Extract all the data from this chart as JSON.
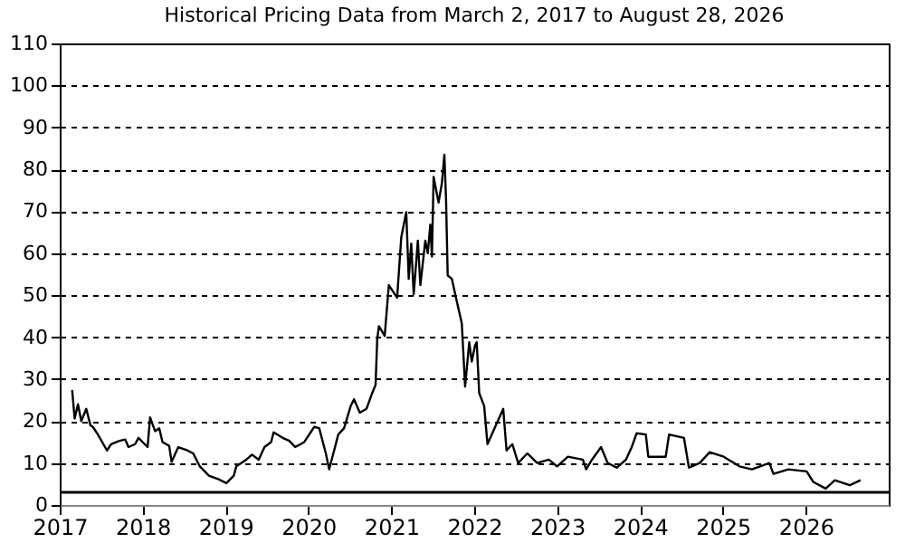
{
  "chart_data": {
    "type": "line",
    "title": "Historical Pricing Data from March 2, 2017 to August 28, 2026",
    "x": [
      2017.15,
      2017.18,
      2017.22,
      2017.26,
      2017.32,
      2017.37,
      2017.4,
      2017.46,
      2017.57,
      2017.62,
      2017.72,
      2017.79,
      2017.83,
      2017.91,
      2017.95,
      2018.06,
      2018.09,
      2018.15,
      2018.2,
      2018.24,
      2018.32,
      2018.35,
      2018.43,
      2018.54,
      2018.61,
      2018.69,
      2018.8,
      2018.91,
      2019.01,
      2019.1,
      2019.13,
      2019.25,
      2019.32,
      2019.4,
      2019.47,
      2019.55,
      2019.58,
      2019.69,
      2019.77,
      2019.84,
      2019.95,
      2020.07,
      2020.13,
      2020.21,
      2020.25,
      2020.29,
      2020.36,
      2020.43,
      2020.51,
      2020.55,
      2020.62,
      2020.7,
      2020.77,
      2020.81,
      2020.83,
      2020.85,
      2020.92,
      2020.97,
      2021.07,
      2021.12,
      2021.18,
      2021.21,
      2021.24,
      2021.27,
      2021.32,
      2021.35,
      2021.41,
      2021.44,
      2021.47,
      2021.49,
      2021.51,
      2021.57,
      2021.61,
      2021.64,
      2021.66,
      2021.68,
      2021.73,
      2021.78,
      2021.85,
      2021.89,
      2021.94,
      2021.97,
      2022.01,
      2022.03,
      2022.06,
      2022.12,
      2022.16,
      2022.35,
      2022.39,
      2022.46,
      2022.53,
      2022.64,
      2022.76,
      2022.9,
      2023.0,
      2023.13,
      2023.31,
      2023.35,
      2023.42,
      2023.53,
      2023.61,
      2023.72,
      2023.83,
      2023.9,
      2023.96,
      2024.07,
      2024.1,
      2024.31,
      2024.35,
      2024.53,
      2024.59,
      2024.72,
      2024.84,
      2025.01,
      2025.2,
      2025.35,
      2025.56,
      2025.61,
      2025.79,
      2026.01,
      2026.09,
      2026.24,
      2026.35,
      2026.53,
      2026.66
    ],
    "values": [
      27.4,
      20.6,
      24,
      20,
      22.9,
      19,
      18.6,
      16.8,
      13,
      14.5,
      15.3,
      15.6,
      13.8,
      14.5,
      16,
      13.8,
      20.9,
      17.6,
      18.3,
      15,
      14.1,
      10.3,
      13.8,
      13,
      12.3,
      9.2,
      7,
      6.2,
      5.2,
      7,
      9.2,
      10.8,
      12,
      10.8,
      13.8,
      15,
      17.3,
      16,
      15.3,
      13.8,
      15,
      18.6,
      18.3,
      12.3,
      8.5,
      11.5,
      16.8,
      18.3,
      23.6,
      25.2,
      22,
      22.9,
      26.7,
      28.6,
      39.5,
      42.6,
      40.3,
      52.4,
      49.4,
      63.8,
      69.8,
      53.9,
      62.3,
      50.2,
      63,
      52.4,
      63,
      60,
      66.8,
      59.2,
      78.2,
      72.1,
      76.7,
      83.5,
      72.9,
      54.7,
      53.9,
      49.4,
      43.3,
      28.2,
      38.8,
      34.2,
      38,
      38.8,
      26.7,
      23.6,
      14.5,
      22.9,
      13,
      14.5,
      10,
      12.3,
      10,
      10.8,
      9.2,
      11.5,
      10.8,
      8.5,
      10.8,
      13.8,
      10,
      8.9,
      10.8,
      13.8,
      17.1,
      16.8,
      11.5,
      11.5,
      16.8,
      16,
      8.9,
      10,
      12.6,
      11.5,
      9.2,
      8.5,
      10,
      7.4,
      8.5,
      8,
      5.5,
      3.9,
      5.9,
      4.7,
      5.9
    ],
    "color": "#000000",
    "xlim": [
      2017,
      2027
    ],
    "xticks": [
      2017,
      2018,
      2019,
      2020,
      2021,
      2022,
      2023,
      2024,
      2025,
      2026
    ],
    "ylim": [
      0,
      110
    ],
    "yticks": [
      0,
      10,
      20,
      30,
      40,
      50,
      60,
      70,
      80,
      90,
      100,
      110
    ],
    "grid": "y",
    "ref_lines": [
      {
        "axis": "y",
        "value": 3,
        "color": "#000000"
      }
    ]
  }
}
